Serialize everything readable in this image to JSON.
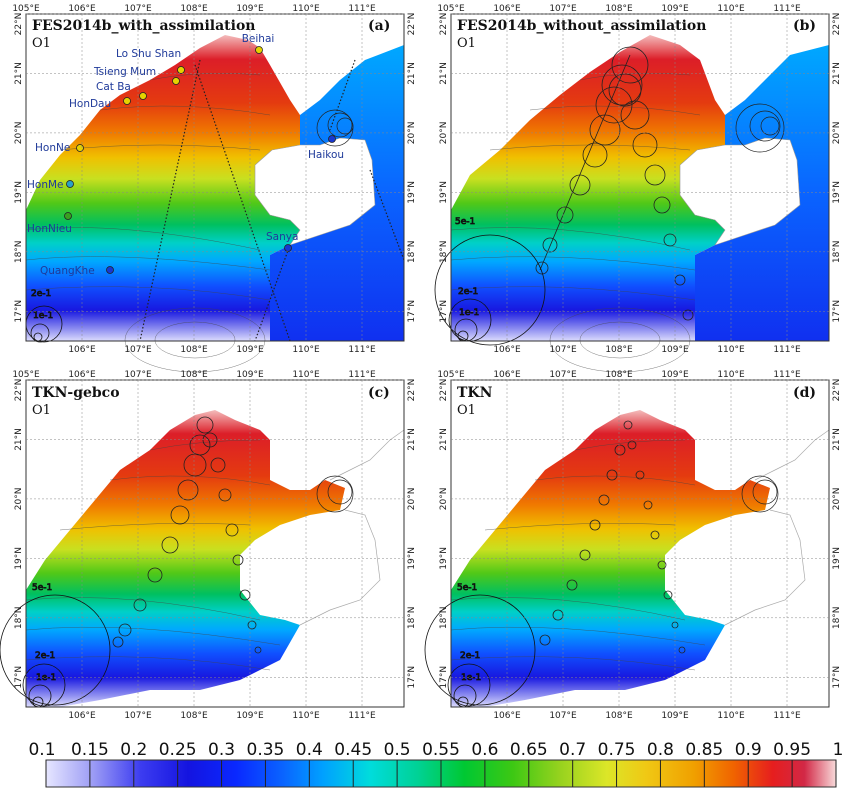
{
  "panels": [
    {
      "title": "FES2014b_with_assimilation",
      "constituent": "O1",
      "letter": "(a)"
    },
    {
      "title": "FES2014b_without_assimilation",
      "constituent": "O1",
      "letter": "(b)"
    },
    {
      "title": "TKN-gebco",
      "constituent": "O1",
      "letter": "(c)"
    },
    {
      "title": "TKN",
      "constituent": "O1",
      "letter": "(d)"
    }
  ],
  "axes": {
    "lon_labels": [
      "105°E",
      "106°E",
      "107°E",
      "108°E",
      "109°E",
      "110°E",
      "111°E"
    ],
    "bottom_lon_labels": [
      "106°E",
      "107°E",
      "108°E",
      "109°E",
      "110°E",
      "111°E"
    ],
    "lat_labels": [
      "22°N",
      "21°N",
      "20°N",
      "19°N",
      "18°N",
      "17°N"
    ]
  },
  "stations": [
    {
      "name": "Beihai"
    },
    {
      "name": "Lo Shu Shan"
    },
    {
      "name": "Tsieng Mum"
    },
    {
      "name": "Cat Ba"
    },
    {
      "name": "HonDau"
    },
    {
      "name": "HonNe"
    },
    {
      "name": "HonMe"
    },
    {
      "name": "HonNieu"
    },
    {
      "name": "Haikou"
    },
    {
      "name": "Sanya"
    },
    {
      "name": "QuangKhe"
    }
  ],
  "scale_labels": {
    "a": [
      "2e-1",
      "1e-1"
    ],
    "b": [
      "5e-1",
      "2e-1",
      "1e-1"
    ],
    "c": [
      "5e-1",
      "2e-1",
      "1e-1"
    ],
    "d": [
      "5e-1",
      "2e-1",
      "1e-1"
    ]
  },
  "colorbar": {
    "ticks": [
      "0.1",
      "0.15",
      "0.2",
      "0.25",
      "0.3",
      "0.35",
      "0.4",
      "0.45",
      "0.5",
      "0.55",
      "0.6",
      "0.65",
      "0.7",
      "0.75",
      "0.8",
      "0.85",
      "0.9",
      "0.95",
      "1"
    ],
    "colors": [
      "#e6e6ff",
      "#9b9bf5",
      "#3c3cf0",
      "#1414e0",
      "#0a28ff",
      "#0a64ff",
      "#00a0ff",
      "#00dcdc",
      "#00d296",
      "#00c832",
      "#3cc814",
      "#96d21e",
      "#dce628",
      "#f0c814",
      "#f0a000",
      "#f06400",
      "#e61e1e",
      "#d22846",
      "#f0a0a0",
      "#f8dada"
    ]
  },
  "chart_data": {
    "type": "heatmap",
    "variable": "O1",
    "colorbar_range": [
      0.1,
      1
    ],
    "colorbar_step": 0.05,
    "lon_range": [
      105,
      111.75
    ],
    "lat_range": [
      16.5,
      22
    ],
    "panels": [
      "FES2014b_with_assimilation",
      "FES2014b_without_assimilation",
      "TKN-gebco",
      "TKN"
    ]
  }
}
